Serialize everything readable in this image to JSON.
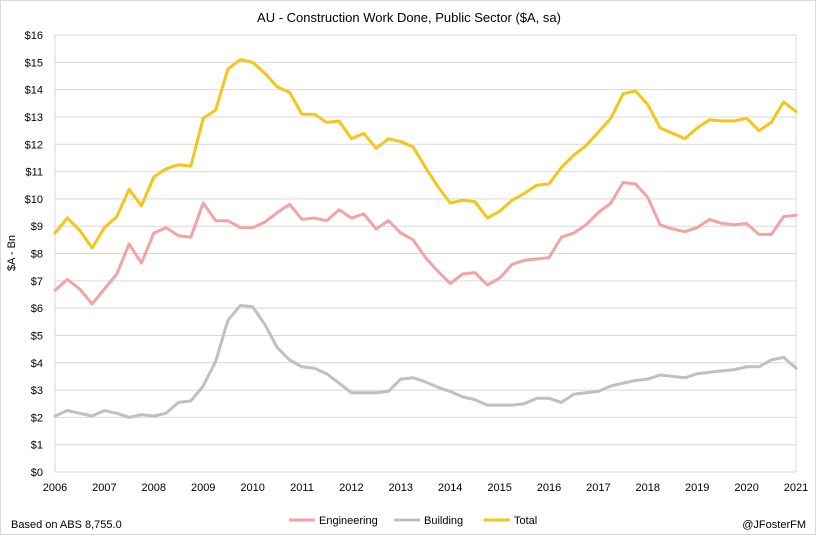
{
  "chart_data": {
    "type": "line",
    "title": "AU - Construction Work Done, Public Sector ($A, sa)",
    "ylabel": "$A - Bn",
    "xlabel": "",
    "ylim": [
      0,
      16
    ],
    "yticks": [
      "$0",
      "$1",
      "$2",
      "$3",
      "$4",
      "$5",
      "$6",
      "$7",
      "$8",
      "$9",
      "$10",
      "$11",
      "$12",
      "$13",
      "$14",
      "$15",
      "$16"
    ],
    "xlim": [
      2006,
      2021
    ],
    "xticks": [
      "2006",
      "2007",
      "2008",
      "2009",
      "2010",
      "2011",
      "2012",
      "2013",
      "2014",
      "2015",
      "2016",
      "2017",
      "2018",
      "2019",
      "2020",
      "2021"
    ],
    "grid": "horizontal",
    "legend": "bottom",
    "x": [
      2006.0,
      2006.25,
      2006.5,
      2006.75,
      2007.0,
      2007.25,
      2007.5,
      2007.75,
      2008.0,
      2008.25,
      2008.5,
      2008.75,
      2009.0,
      2009.25,
      2009.5,
      2009.75,
      2010.0,
      2010.25,
      2010.5,
      2010.75,
      2011.0,
      2011.25,
      2011.5,
      2011.75,
      2012.0,
      2012.25,
      2012.5,
      2012.75,
      2013.0,
      2013.25,
      2013.5,
      2013.75,
      2014.0,
      2014.25,
      2014.5,
      2014.75,
      2015.0,
      2015.25,
      2015.5,
      2015.75,
      2016.0,
      2016.25,
      2016.5,
      2016.75,
      2017.0,
      2017.25,
      2017.5,
      2017.75,
      2018.0,
      2018.25,
      2018.5,
      2018.75,
      2019.0,
      2019.25,
      2019.5,
      2019.75,
      2020.0,
      2020.25,
      2020.5,
      2020.75,
      2021.0
    ],
    "series": [
      {
        "name": "Engineering",
        "color": "#f4a3a3",
        "values": [
          6.65,
          7.05,
          6.7,
          6.15,
          6.7,
          7.25,
          8.35,
          7.65,
          8.75,
          8.95,
          8.65,
          8.6,
          9.85,
          9.2,
          9.2,
          8.95,
          8.95,
          9.15,
          9.5,
          9.8,
          9.25,
          9.3,
          9.2,
          9.6,
          9.3,
          9.45,
          8.9,
          9.2,
          8.75,
          8.5,
          7.85,
          7.35,
          6.9,
          7.25,
          7.3,
          6.85,
          7.1,
          7.6,
          7.75,
          7.8,
          7.85,
          8.6,
          8.75,
          9.05,
          9.5,
          9.85,
          10.6,
          10.55,
          10.05,
          9.05,
          8.9,
          8.8,
          8.95,
          9.25,
          9.1,
          9.05,
          9.1,
          8.7,
          8.7,
          9.35,
          9.4
        ]
      },
      {
        "name": "Building",
        "color": "#c0c0c0",
        "values": [
          2.05,
          2.25,
          2.15,
          2.05,
          2.25,
          2.15,
          2.0,
          2.1,
          2.05,
          2.15,
          2.55,
          2.6,
          3.15,
          4.05,
          5.55,
          6.1,
          6.05,
          5.4,
          4.55,
          4.1,
          3.85,
          3.8,
          3.6,
          3.25,
          2.9,
          2.9,
          2.9,
          2.95,
          3.4,
          3.45,
          3.3,
          3.1,
          2.95,
          2.75,
          2.65,
          2.45,
          2.45,
          2.45,
          2.5,
          2.7,
          2.7,
          2.55,
          2.85,
          2.9,
          2.95,
          3.15,
          3.25,
          3.35,
          3.4,
          3.55,
          3.5,
          3.45,
          3.6,
          3.65,
          3.7,
          3.75,
          3.85,
          3.85,
          4.1,
          4.2,
          3.8
        ]
      },
      {
        "name": "Total",
        "color": "#f5c518",
        "values": [
          8.75,
          9.3,
          8.85,
          8.2,
          8.95,
          9.35,
          10.35,
          9.75,
          10.8,
          11.1,
          11.25,
          11.2,
          12.95,
          13.25,
          14.75,
          15.1,
          15.0,
          14.6,
          14.1,
          13.9,
          13.1,
          13.1,
          12.8,
          12.85,
          12.2,
          12.4,
          11.85,
          12.2,
          12.1,
          11.9,
          11.15,
          10.45,
          9.85,
          9.95,
          9.9,
          9.3,
          9.55,
          9.95,
          10.2,
          10.5,
          10.55,
          11.15,
          11.6,
          11.95,
          12.45,
          12.95,
          13.85,
          13.95,
          13.45,
          12.6,
          12.4,
          12.2,
          12.6,
          12.9,
          12.85,
          12.85,
          12.95,
          12.5,
          12.8,
          13.55,
          13.2
        ]
      }
    ]
  },
  "footer": {
    "source": "Based on ABS  8,755.0",
    "credit": "@JFosterFM"
  }
}
